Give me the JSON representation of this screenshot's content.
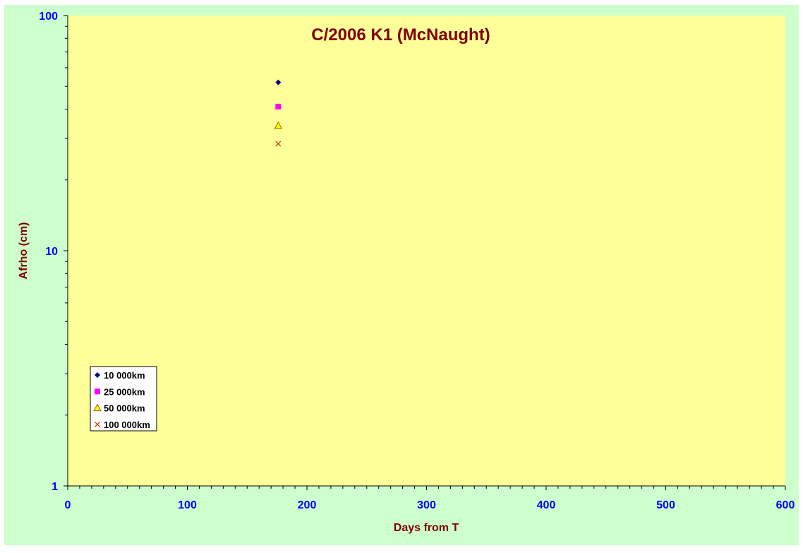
{
  "chart_data": {
    "type": "scatter",
    "title": "C/2006 K1 (McNaught)",
    "xlabel": "Days from T",
    "ylabel": "Afrho (cm)",
    "xlim": [
      0,
      600
    ],
    "ylim": [
      1,
      100
    ],
    "yscale": "log",
    "x_ticks": [
      "0",
      "100",
      "200",
      "300",
      "400",
      "500",
      "600"
    ],
    "y_ticks": [
      "1",
      "10",
      "100"
    ],
    "grid": false,
    "legend_position": "bottom-left",
    "series": [
      {
        "name": "10 000km",
        "marker": "diamond",
        "color": "#000080",
        "points": [
          {
            "x": 176,
            "y": 52
          }
        ]
      },
      {
        "name": "25 000km",
        "marker": "square",
        "color": "#ff00ff",
        "points": [
          {
            "x": 176,
            "y": 41
          }
        ]
      },
      {
        "name": "50 000km",
        "marker": "triangle",
        "color": "#ffff00",
        "stroke": "#996600",
        "points": [
          {
            "x": 176,
            "y": 34
          }
        ]
      },
      {
        "name": "100 000km",
        "marker": "x",
        "color": "#cc3300",
        "points": [
          {
            "x": 176,
            "y": 28.5
          }
        ]
      }
    ],
    "colors": {
      "outer_background": "#ccffcc",
      "plot_background": "#ffff99",
      "title": "#800000",
      "axis_label": "#800000",
      "tick_label": "#0000ff"
    }
  }
}
